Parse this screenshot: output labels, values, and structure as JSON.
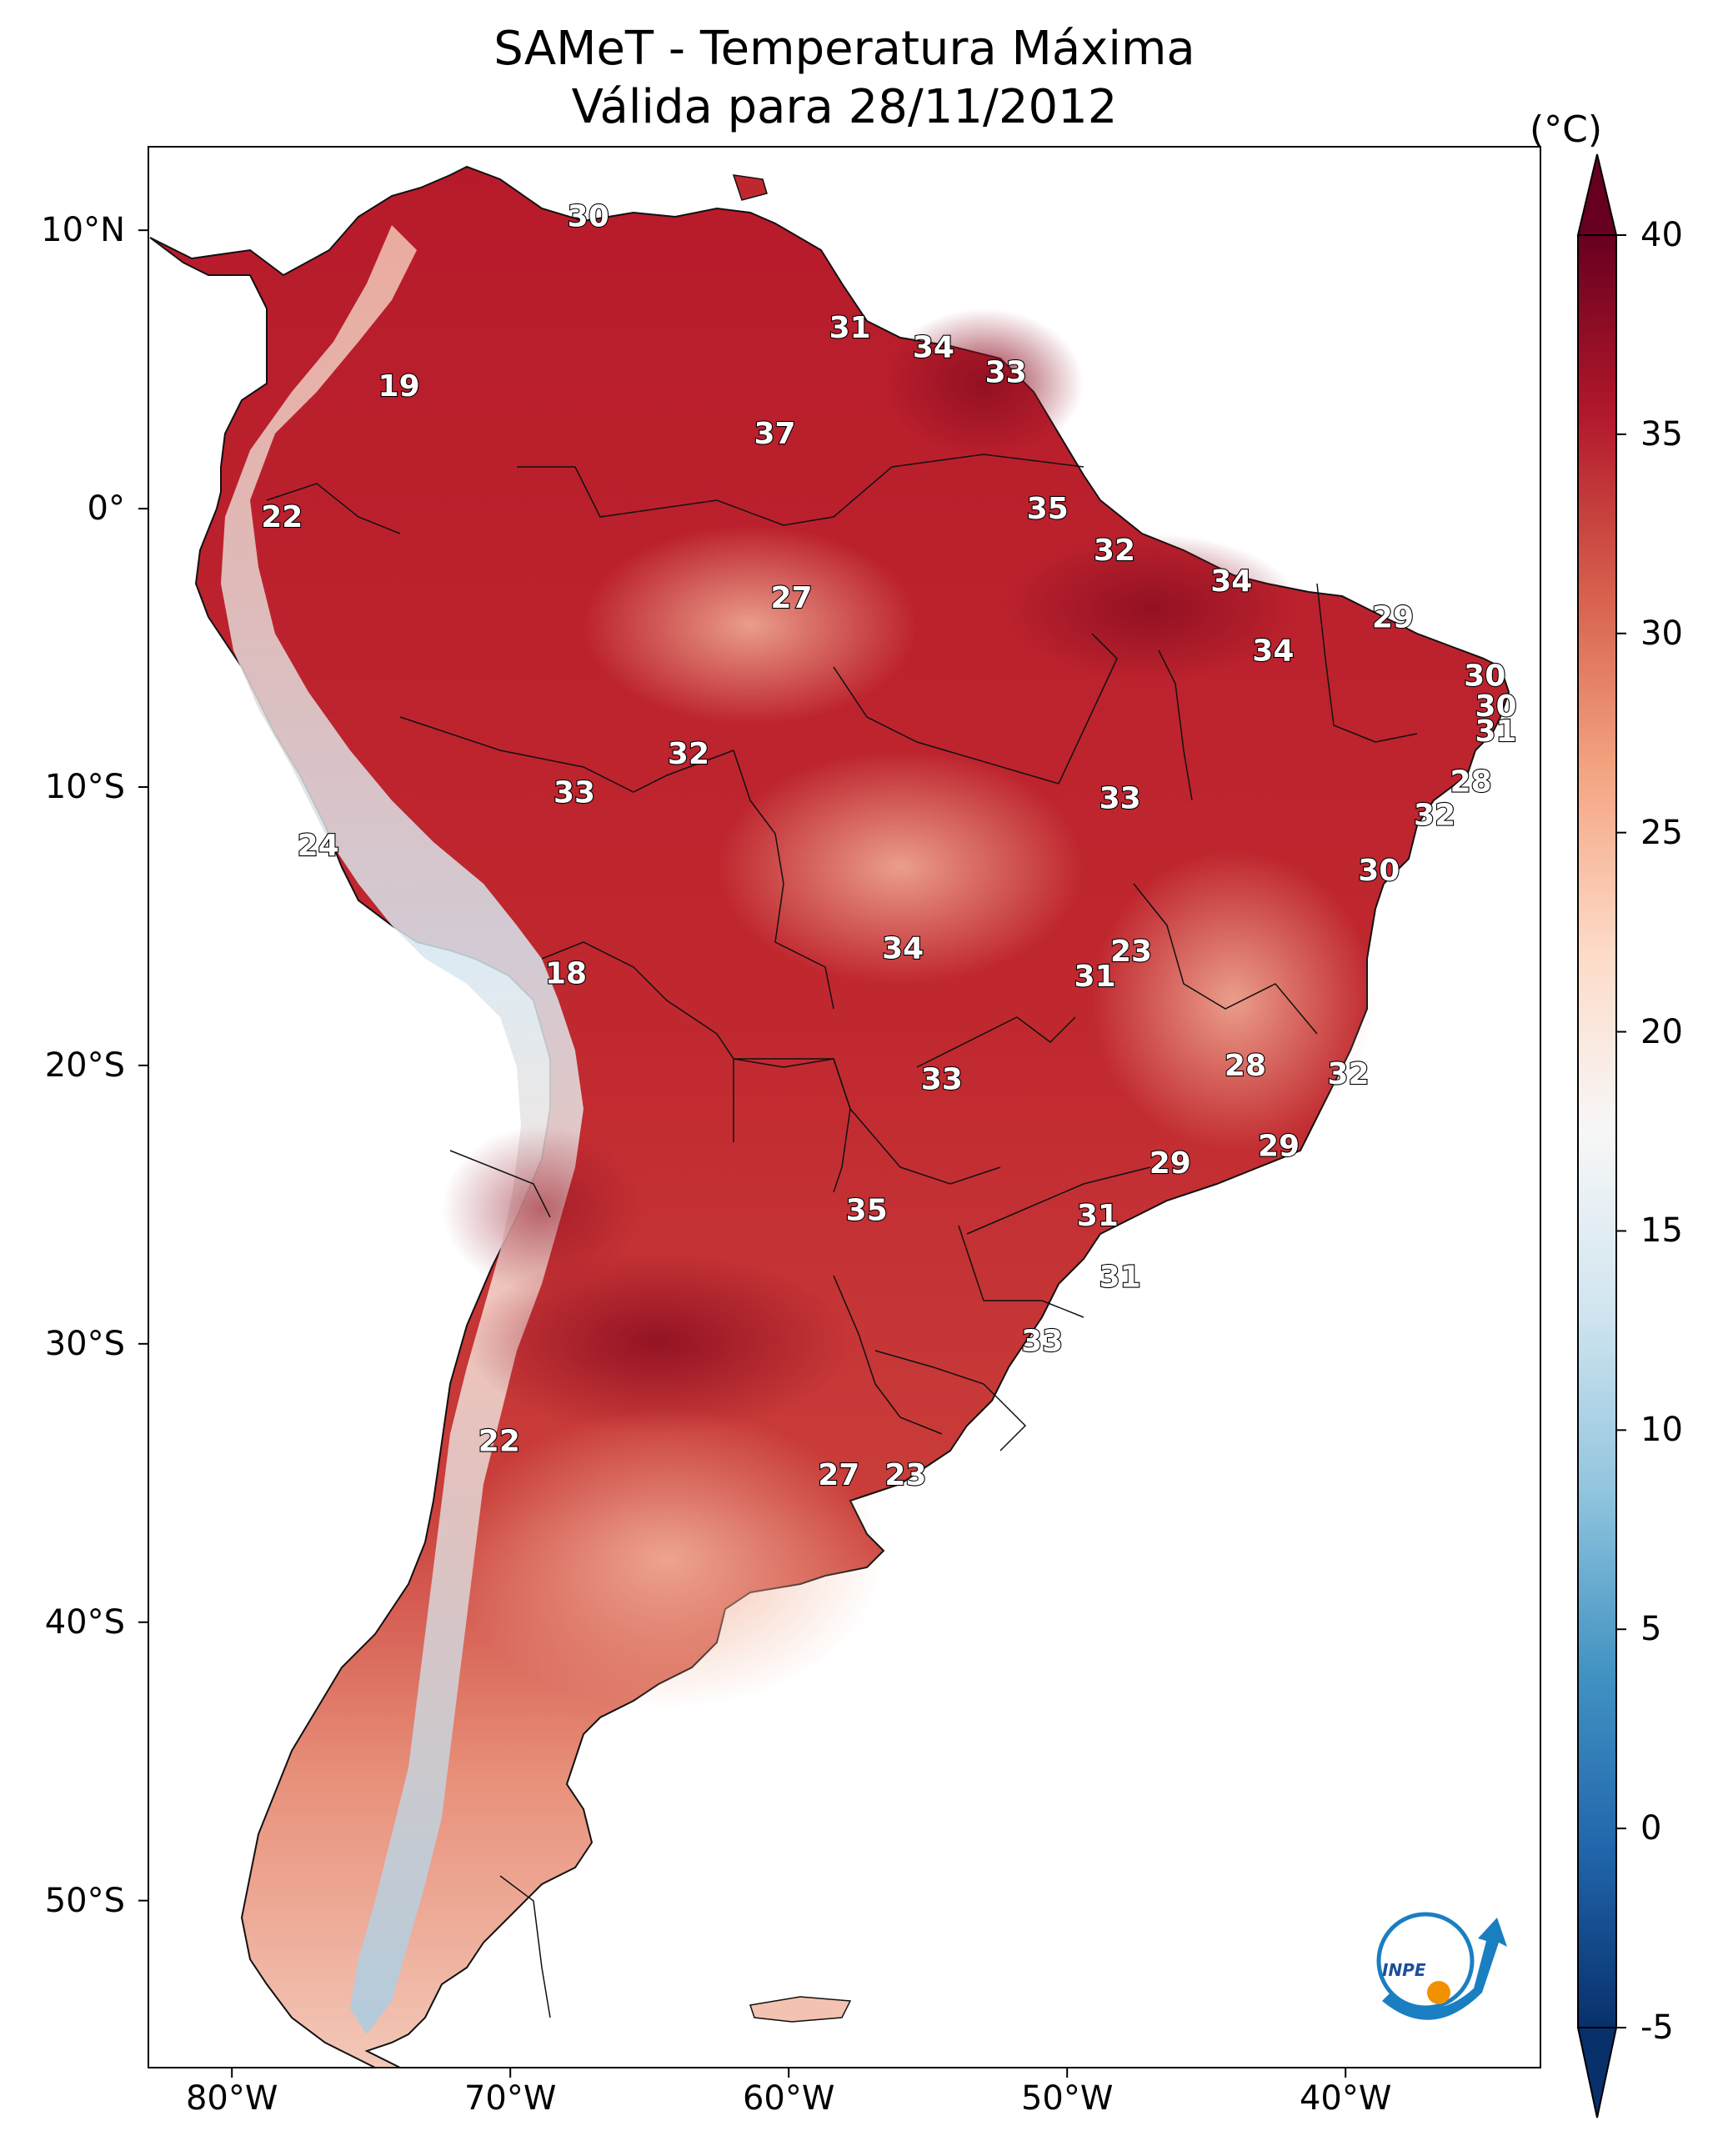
{
  "title": {
    "line1": "SAMeT - Temperatura Máxima",
    "line2": "Válida para 28/11/2012"
  },
  "axes": {
    "lat_labels": [
      "10°N",
      "0°",
      "10°S",
      "20°S",
      "30°S",
      "40°S",
      "50°S"
    ],
    "lat_values": [
      10,
      0,
      -10,
      -20,
      -30,
      -40,
      -50
    ],
    "lon_labels": [
      "80°W",
      "70°W",
      "60°W",
      "50°W",
      "40°W"
    ],
    "lon_values": [
      -80,
      -70,
      -60,
      -50,
      -40
    ],
    "lon_range": [
      -83,
      -33
    ],
    "lat_range": [
      -56,
      13
    ]
  },
  "colorbar": {
    "unit": "(°C)",
    "tick_labels": [
      "40",
      "35",
      "30",
      "25",
      "20",
      "15",
      "10",
      "5",
      "0",
      "-5"
    ],
    "range": [
      -5,
      40
    ],
    "colors": [
      "#08306b",
      "#2166ac",
      "#4393c3",
      "#92c5de",
      "#d1e5f0",
      "#f7f7f7",
      "#fddbc7",
      "#f4a582",
      "#d6604d",
      "#b2182b",
      "#67001f"
    ]
  },
  "contour_labels": [
    {
      "text": "30",
      "lon": -67.2,
      "lat": 10.5
    },
    {
      "text": "31",
      "lon": -57.8,
      "lat": 6.5
    },
    {
      "text": "34",
      "lon": -54.8,
      "lat": 5.8
    },
    {
      "text": "33",
      "lon": -52.2,
      "lat": 4.9
    },
    {
      "text": "19",
      "lon": -74.0,
      "lat": 4.4
    },
    {
      "text": "37",
      "lon": -60.5,
      "lat": 2.7
    },
    {
      "text": "35",
      "lon": -50.7,
      "lat": 0.0
    },
    {
      "text": "22",
      "lon": -78.2,
      "lat": -0.3
    },
    {
      "text": "32",
      "lon": -48.3,
      "lat": -1.5
    },
    {
      "text": "34",
      "lon": -44.1,
      "lat": -2.6
    },
    {
      "text": "27",
      "lon": -59.9,
      "lat": -3.2
    },
    {
      "text": "29",
      "lon": -38.3,
      "lat": -3.9
    },
    {
      "text": "34",
      "lon": -42.6,
      "lat": -5.1
    },
    {
      "text": "30",
      "lon": -35.0,
      "lat": -6.0
    },
    {
      "text": "30",
      "lon": -34.6,
      "lat": -7.1
    },
    {
      "text": "31",
      "lon": -34.6,
      "lat": -8.0
    },
    {
      "text": "32",
      "lon": -63.6,
      "lat": -8.8
    },
    {
      "text": "28",
      "lon": -35.5,
      "lat": -9.8
    },
    {
      "text": "33",
      "lon": -67.7,
      "lat": -10.2
    },
    {
      "text": "33",
      "lon": -48.1,
      "lat": -10.4
    },
    {
      "text": "32",
      "lon": -36.8,
      "lat": -11.0
    },
    {
      "text": "24",
      "lon": -76.9,
      "lat": -12.1
    },
    {
      "text": "30",
      "lon": -38.8,
      "lat": -13.0
    },
    {
      "text": "34",
      "lon": -55.9,
      "lat": -15.8
    },
    {
      "text": "23",
      "lon": -47.7,
      "lat": -15.9
    },
    {
      "text": "31",
      "lon": -49.0,
      "lat": -16.8
    },
    {
      "text": "18",
      "lon": -68.0,
      "lat": -16.7
    },
    {
      "text": "28",
      "lon": -43.6,
      "lat": -20.0
    },
    {
      "text": "32",
      "lon": -39.9,
      "lat": -20.3
    },
    {
      "text": "33",
      "lon": -54.5,
      "lat": -20.5
    },
    {
      "text": "29",
      "lon": -42.4,
      "lat": -22.9
    },
    {
      "text": "29",
      "lon": -46.3,
      "lat": -23.5
    },
    {
      "text": "35",
      "lon": -57.2,
      "lat": -25.2
    },
    {
      "text": "31",
      "lon": -48.9,
      "lat": -25.4
    },
    {
      "text": "31",
      "lon": -48.1,
      "lat": -27.6
    },
    {
      "text": "33",
      "lon": -50.9,
      "lat": -29.9
    },
    {
      "text": "22",
      "lon": -70.4,
      "lat": -33.5
    },
    {
      "text": "27",
      "lon": -58.2,
      "lat": -34.7
    },
    {
      "text": "23",
      "lon": -55.8,
      "lat": -34.7
    }
  ],
  "logo": {
    "text": "INPE"
  }
}
